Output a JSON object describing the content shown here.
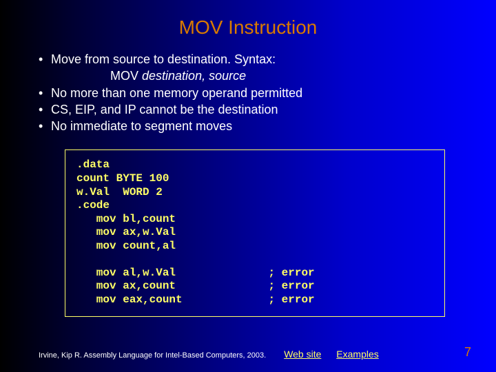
{
  "colors": {
    "title": "#d97a00",
    "body_text": "#ffffff",
    "code_text": "#ffff66",
    "code_border": "#ffff66",
    "link": "#ffff66",
    "pagenum": "#d97a00"
  },
  "title": "MOV Instruction",
  "bullets": {
    "b1": "Move from source to destination. Syntax:",
    "syntax_prefix": "MOV ",
    "syntax_italic": "destination, source",
    "b2": "No more than one memory operand permitted",
    "b3": "CS, EIP, and IP cannot be the destination",
    "b4": "No immediate to segment moves"
  },
  "code": {
    "l1": ".data",
    "l2": "count BYTE 100",
    "l3": "w.Val  WORD 2",
    "l4": ".code",
    "l5": "   mov bl,count",
    "l6": "   mov ax,w.Val",
    "l7": "   mov count,al",
    "l8": "",
    "l9": "   mov al,w.Val              ; error",
    "l10": "   mov ax,count              ; error",
    "l11": "   mov eax,count             ; error"
  },
  "footer": {
    "citation": "Irvine, Kip R. Assembly Language for Intel-Based Computers, 2003.",
    "link_web": "Web site",
    "link_examples": "Examples"
  },
  "page_number": "7"
}
